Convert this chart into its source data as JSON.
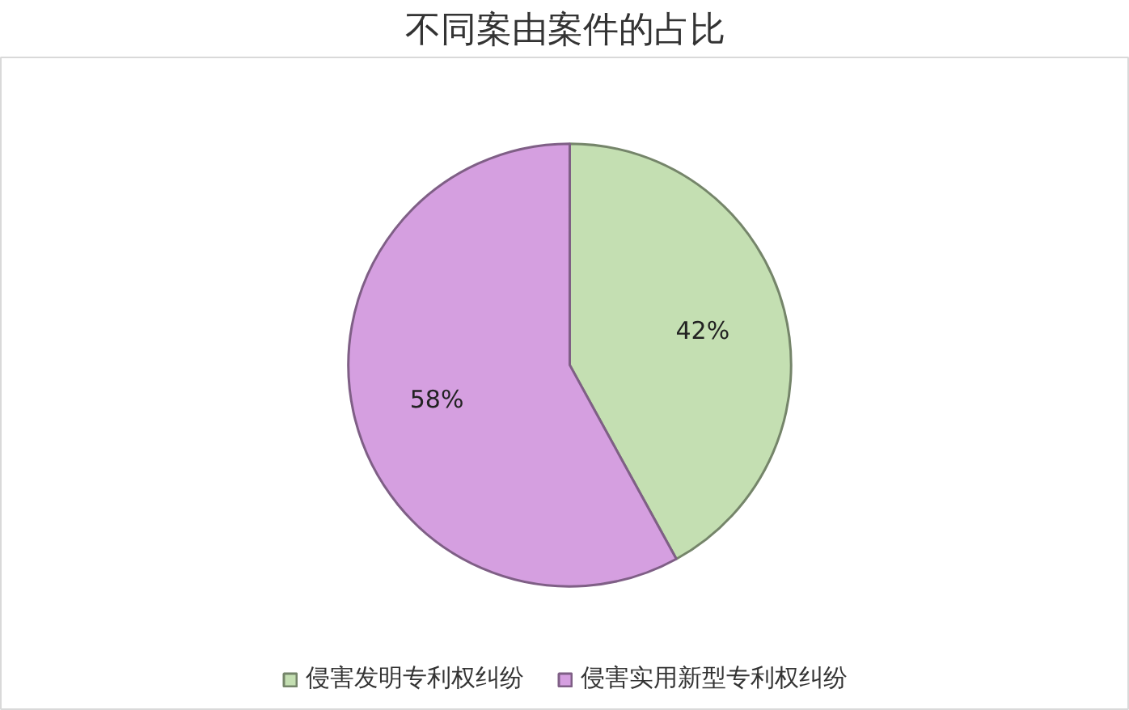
{
  "chart_data": {
    "type": "pie",
    "title": "不同案由案件的占比",
    "categories": [
      "侵害发明专利权纠纷",
      "侵害实用新型专利权纠纷"
    ],
    "values": [
      42,
      58
    ],
    "colors": [
      "#c4dfb2",
      "#d59fe0"
    ],
    "value_labels": [
      "42%",
      "58%"
    ],
    "legend": "bottom"
  }
}
